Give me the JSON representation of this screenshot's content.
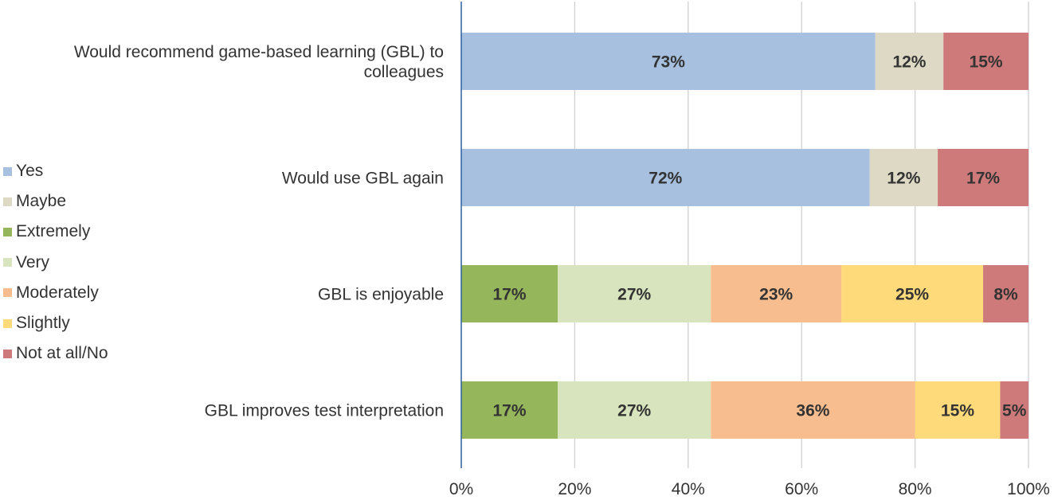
{
  "chart_data": {
    "type": "bar",
    "orientation": "horizontal",
    "stacked": true,
    "title": "",
    "xlabel": "",
    "ylabel": "",
    "xlim": [
      0,
      100
    ],
    "x_ticks": [
      "0%",
      "20%",
      "40%",
      "60%",
      "80%",
      "100%"
    ],
    "grid": true,
    "legend_position": "left",
    "colors": {
      "Yes": "#a7c0df",
      "Maybe": "#ddd9c4",
      "Extremely": "#96b65b",
      "Very": "#d7e4bd",
      "Moderately": "#f8bd8f",
      "Slightly": "#ffda7a",
      "Not at all/No": "#cf7a7a"
    },
    "legend": [
      "Yes",
      "Maybe",
      "Extremely",
      "Very",
      "Moderately",
      "Slightly",
      "Not at all/No"
    ],
    "categories": [
      "Would recommend game-based learning (GBL) to colleagues",
      "Would use GBL again",
      "GBL is enjoyable",
      "GBL improves test interpretation"
    ],
    "bars": [
      {
        "category": "Would recommend game-based learning (GBL) to colleagues",
        "label_lines": [
          "Would recommend game-based learning (GBL) to",
          "colleagues"
        ],
        "segments": [
          {
            "series": "Yes",
            "value": 73,
            "label": "73%"
          },
          {
            "series": "Maybe",
            "value": 12,
            "label": "12%"
          },
          {
            "series": "Not at all/No",
            "value": 15,
            "label": "15%"
          }
        ]
      },
      {
        "category": "Would use GBL again",
        "label_lines": [
          "Would use GBL again"
        ],
        "segments": [
          {
            "series": "Yes",
            "value": 72,
            "label": "72%"
          },
          {
            "series": "Maybe",
            "value": 12,
            "label": "12%"
          },
          {
            "series": "Not at all/No",
            "value": 17,
            "label": "17%"
          }
        ]
      },
      {
        "category": "GBL is enjoyable",
        "label_lines": [
          "GBL is enjoyable"
        ],
        "segments": [
          {
            "series": "Extremely",
            "value": 17,
            "label": "17%"
          },
          {
            "series": "Very",
            "value": 27,
            "label": "27%"
          },
          {
            "series": "Moderately",
            "value": 23,
            "label": "23%"
          },
          {
            "series": "Slightly",
            "value": 25,
            "label": "25%"
          },
          {
            "series": "Not at all/No",
            "value": 8,
            "label": "8%"
          }
        ]
      },
      {
        "category": "GBL improves test interpretation",
        "label_lines": [
          "GBL improves test interpretation"
        ],
        "segments": [
          {
            "series": "Extremely",
            "value": 17,
            "label": "17%"
          },
          {
            "series": "Very",
            "value": 27,
            "label": "27%"
          },
          {
            "series": "Moderately",
            "value": 36,
            "label": "36%"
          },
          {
            "series": "Slightly",
            "value": 15,
            "label": "15%"
          },
          {
            "series": "Not at all/No",
            "value": 5,
            "label": "5%"
          }
        ]
      }
    ]
  }
}
